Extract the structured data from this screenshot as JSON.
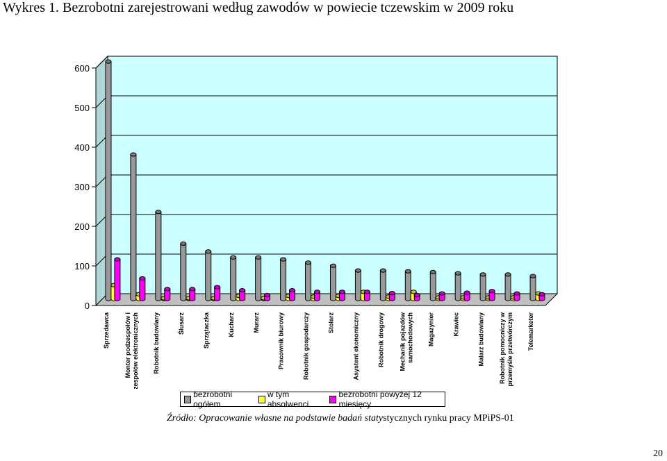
{
  "title": "Wykres 1. Bezrobotni zarejestrowani według zawodów w powiecie tczewskim w 2009 roku",
  "chart_data": {
    "type": "bar",
    "categories": [
      "Sprzedawca",
      "Monter podzespołów i zespołów elektronicznych",
      "Robotnik budowlany",
      "Ślusarz",
      "Sprzątaczka",
      "Kucharz",
      "Murarz",
      "Pracownik biurowy",
      "Robotnik gospodarczy",
      "Stolarz",
      "Asystent ekonomiczny",
      "Robotnik drogowy",
      "Mechanik pojazdów samochodowych",
      "Magazynier",
      "Krawiec",
      "Malarz budowlany",
      "Robotnik pomocniczy w przemyśle przetwórczym",
      "Telemarketer"
    ],
    "category_lines": [
      [
        "Sprzedawca"
      ],
      [
        "Monter podzespołów i",
        "zespołów elektronicznych"
      ],
      [
        "Robotnik budowlany"
      ],
      [
        "Ślusarz"
      ],
      [
        "Sprzątaczka"
      ],
      [
        "Kucharz"
      ],
      [
        "Murarz"
      ],
      [
        "Pracownik biurowy"
      ],
      [
        "Robotnik gospodarczy"
      ],
      [
        "Stolarz"
      ],
      [
        "Asystent ekonomiczny"
      ],
      [
        "Robotnik drogowy"
      ],
      [
        "Mechanik pojazdów",
        "samochodowych"
      ],
      [
        "Magazynier"
      ],
      [
        "Krawiec"
      ],
      [
        "Malarz budowlany"
      ],
      [
        "Robotnik pomocniczy w",
        "przemyśle przetwórczym"
      ],
      [
        "Telemarketer"
      ]
    ],
    "series": [
      {
        "name": "bezrobotni ogółem",
        "color": "#999999",
        "values": [
          600,
          365,
          220,
          140,
          120,
          105,
          105,
          100,
          92,
          84,
          72,
          72,
          70,
          68,
          65,
          62,
          62,
          58
        ]
      },
      {
        "name": "w tym absolwenci",
        "color": "#ffff33",
        "values": [
          35,
          12,
          2,
          2,
          2,
          8,
          2,
          8,
          6,
          8,
          18,
          6,
          18,
          4,
          4,
          4,
          4,
          14
        ]
      },
      {
        "name": "bezrobotni powyżej 12 miesięcy",
        "color": "#ff00ff",
        "values": [
          100,
          52,
          25,
          25,
          30,
          22,
          10,
          22,
          18,
          18,
          18,
          15,
          10,
          14,
          16,
          20,
          14,
          12
        ]
      }
    ],
    "yticks": [
      "0",
      "100",
      "200",
      "300",
      "400",
      "500",
      "600"
    ],
    "ylim": [
      0,
      600
    ],
    "grid": true,
    "legend_position": "bottom"
  },
  "source": {
    "italic": "Źródło: Opracowanie własne na podstawie badań staty",
    "normal": "stycznych rynku pracy MPiPS-01"
  },
  "page_number": "20"
}
